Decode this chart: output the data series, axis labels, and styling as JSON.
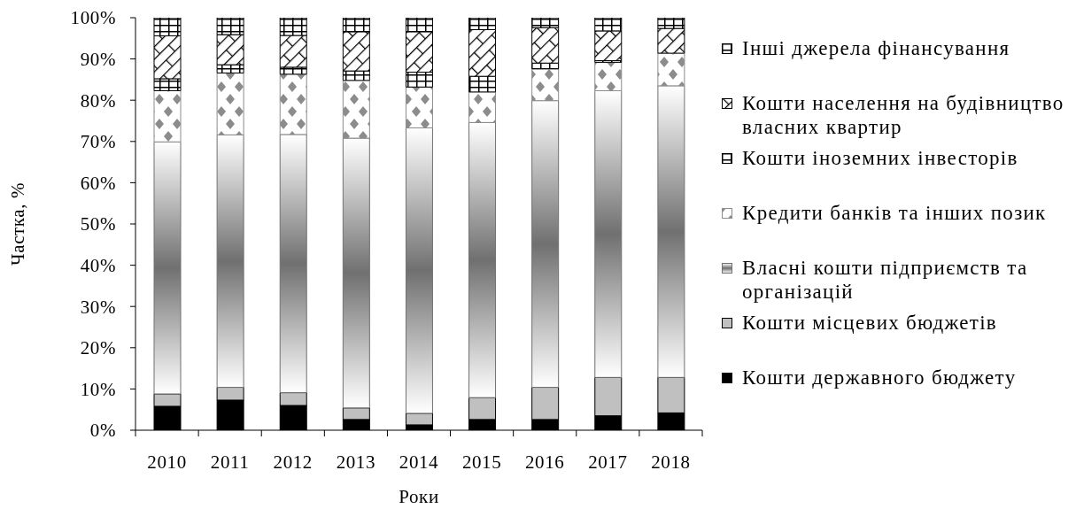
{
  "chart_data": {
    "type": "bar",
    "stacked": true,
    "xlabel": "Роки",
    "ylabel": "Частка, %",
    "categories": [
      "2010",
      "2011",
      "2012",
      "2013",
      "2014",
      "2015",
      "2016",
      "2017",
      "2018"
    ],
    "series": [
      {
        "name": "Кошти державного бюджету",
        "color": "#000000",
        "values": [
          5.8,
          7.3,
          6.0,
          2.6,
          1.3,
          2.6,
          2.6,
          3.5,
          4.2
        ]
      },
      {
        "name": "Кошти місцевих бюджетів",
        "color": "#c0c0c0",
        "values": [
          3.0,
          3.1,
          3.1,
          2.8,
          2.8,
          5.3,
          7.8,
          9.3,
          8.6
        ]
      },
      {
        "name": "Власні кошти підприємств та організацій",
        "color": "#707070",
        "values": [
          61.1,
          61.2,
          62.6,
          65.4,
          69.2,
          66.7,
          69.5,
          69.5,
          70.7
        ]
      },
      {
        "name": "Кредити банків та інших позик",
        "color": "#8c8c8c",
        "values": [
          12.4,
          15.0,
          14.6,
          14.0,
          9.9,
          7.4,
          7.7,
          6.9,
          7.9
        ]
      },
      {
        "name": "Кошти іноземних інвесторів",
        "color": "#000000",
        "values": [
          2.9,
          2.0,
          1.7,
          2.3,
          3.6,
          3.8,
          1.4,
          0.4,
          0
        ]
      },
      {
        "name": "Кошти населення на будівництво власних квартир",
        "color": "#000000",
        "values": [
          10.4,
          7.3,
          7.7,
          9.5,
          9.8,
          11.3,
          8.6,
          7.2,
          6.0
        ]
      },
      {
        "name": "Інші джерела фінансування",
        "color": "#000000",
        "values": [
          4.4,
          4.1,
          4.3,
          3.4,
          3.4,
          2.9,
          2.4,
          3.2,
          2.6
        ]
      }
    ],
    "ylim": [
      0,
      100
    ],
    "yticks": [
      {
        "value": 0,
        "label": "0%"
      },
      {
        "value": 10,
        "label": "10%"
      },
      {
        "value": 20,
        "label": "20%"
      },
      {
        "value": 30,
        "label": "30%"
      },
      {
        "value": 40,
        "label": "40%"
      },
      {
        "value": 50,
        "label": "50%"
      },
      {
        "value": 60,
        "label": "60%"
      },
      {
        "value": 70,
        "label": "70%"
      },
      {
        "value": 80,
        "label": "80%"
      },
      {
        "value": 90,
        "label": "90%"
      },
      {
        "value": 100,
        "label": "100%"
      }
    ],
    "legend": "right"
  }
}
